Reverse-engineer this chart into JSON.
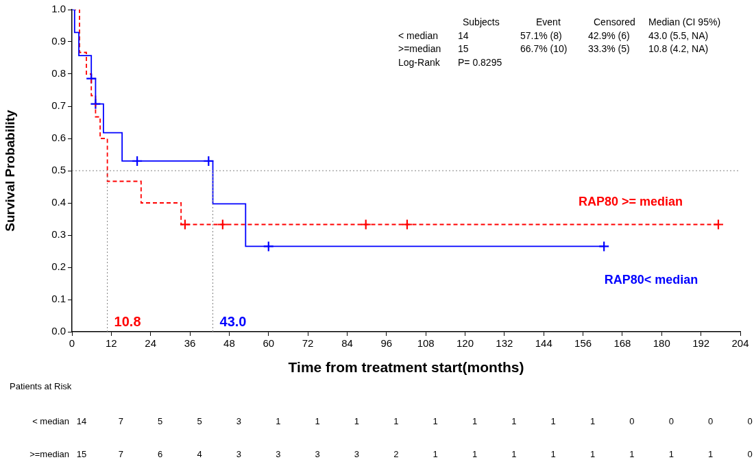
{
  "chart_data": {
    "type": "step",
    "xlabel": "Time from treatment start(months)",
    "ylabel": "Survival Probability",
    "xlim": [
      0,
      204
    ],
    "xticks": [
      0,
      12,
      24,
      36,
      48,
      60,
      72,
      84,
      96,
      108,
      120,
      132,
      144,
      156,
      168,
      180,
      192,
      204
    ],
    "ylim": [
      0,
      1
    ],
    "yticks": [
      {
        "value": 0,
        "label": "0.0"
      },
      0.1,
      0.2,
      0.3,
      0.4,
      0.5,
      0.6,
      0.7,
      0.8,
      0.9,
      {
        "value": 1,
        "label": "1.0"
      }
    ],
    "grid": false,
    "legend": false,
    "series": [
      {
        "name": "RAP80< median",
        "color": "#0000ff",
        "line_style": "solid",
        "x": [
          0,
          0.8,
          2.1,
          5.9,
          7.2,
          9.6,
          15.3,
          43.0,
          53.0,
          162.4
        ],
        "values": [
          1,
          0.929,
          0.857,
          0.786,
          0.707,
          0.618,
          0.53,
          0.397,
          0.265,
          0.265
        ]
      },
      {
        "name": "RAP80 >= median",
        "color": "#ff0000",
        "line_style": "dashed",
        "x": [
          0,
          2.3,
          4.4,
          5.9,
          7.2,
          8.6,
          10.8,
          21.1,
          33.3,
          197.3
        ],
        "values": [
          1,
          0.867,
          0.8,
          0.733,
          0.667,
          0.6,
          0.467,
          0.4,
          0.333,
          0.333
        ]
      },
      {
        "type": "scatter",
        "marker": "cross",
        "color": "#0000ff",
        "x": [
          5.9,
          7.2,
          19.9,
          41.7,
          60.0,
          162.4
        ],
        "values": [
          0.786,
          0.707,
          0.53,
          0.53,
          0.265,
          0.265
        ]
      },
      {
        "type": "scatter",
        "marker": "cross",
        "color": "#ff0000",
        "x": [
          34.5,
          46.0,
          89.7,
          102.3,
          197.3
        ],
        "values": [
          0.333,
          0.333,
          0.333,
          0.333,
          0.333
        ]
      }
    ],
    "ref_lines": [
      {
        "axis": "y",
        "value": 0.5,
        "color": "#808080",
        "line_style": "dotted"
      },
      {
        "axis": "x",
        "value": 10.8,
        "label": "10.8",
        "line_style": "dotted"
      },
      {
        "axis": "x",
        "value": 43.0,
        "label": "43.0",
        "line_style": "dotted"
      }
    ],
    "annotations": [
      "\tSubjects\tEvent\tCensored\tMedian (CI 95%)",
      "< median\t14\t57.1% (8)\t42.9% (6)\t43.0 (5.5, NA)",
      ">=median\t15\t66.7% (10)\t33.3% (5)\t10.8 (4.2, NA)",
      "Log-Rank\tP= 0.8295",
      "Patients at Risk",
      "< median\t14\t7\t5\t5\t3\t1\t1\t1\t1\t1\t1\t1\t1\t1\t0\t0\t0\t0",
      ">=median\t15\t7\t6\t4\t3\t3\t3\t3\t2\t1\t1\t1\t1\t1\t1\t1\t1\t0"
    ]
  }
}
